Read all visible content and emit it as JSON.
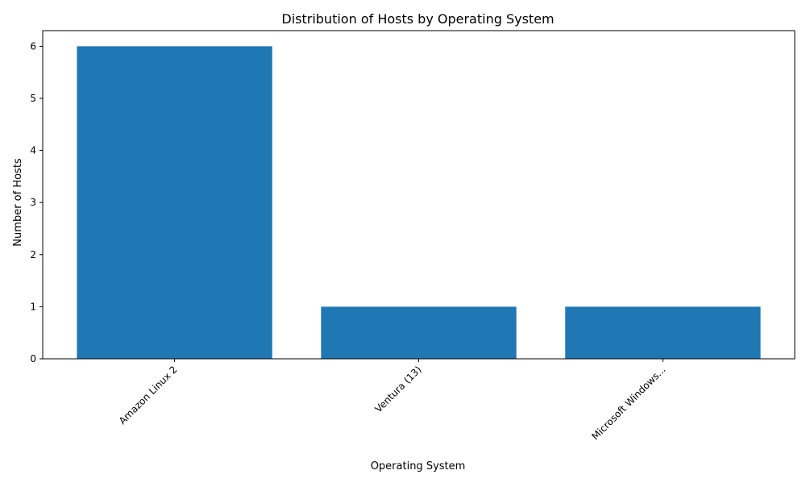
{
  "chart_data": {
    "type": "bar",
    "title": "Distribution of Hosts by Operating System",
    "xlabel": "Operating System",
    "ylabel": "Number of Hosts",
    "categories": [
      "Amazon Linux 2",
      "Ventura (13)",
      "Microsoft Windows..."
    ],
    "values": [
      6,
      1,
      1
    ],
    "ylim": [
      0,
      6.3
    ],
    "yticks": [
      0,
      1,
      2,
      3,
      4,
      5,
      6
    ],
    "bar_color": "#1f77b4",
    "grid": false,
    "legend": "none",
    "xtick_rotation": "45 degrees, right-aligned"
  }
}
